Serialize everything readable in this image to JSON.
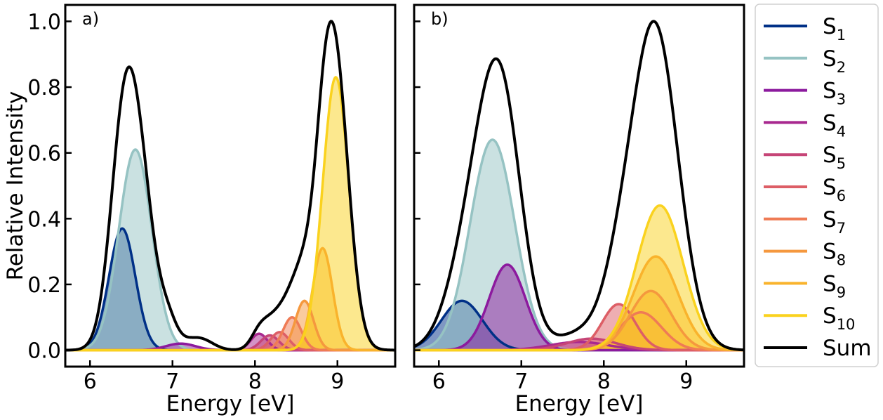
{
  "chart_data": [
    {
      "type": "line",
      "panel_label": "a)",
      "xlabel": "Energy [eV]",
      "ylabel": "Relative Intensity",
      "xlim": [
        5.7,
        9.7
      ],
      "ylim": [
        -0.05,
        1.05
      ],
      "xticks": [
        "6",
        "7",
        "8",
        "9"
      ],
      "yticks": [
        "0.0",
        "0.2",
        "0.4",
        "0.6",
        "0.8",
        "1.0"
      ],
      "series": [
        {
          "name": "S1",
          "peaks": [
            [
              6.39,
              0.37,
              0.16
            ]
          ],
          "color": "#003087"
        },
        {
          "name": "S2",
          "peaks": [
            [
              6.55,
              0.61,
              0.2
            ]
          ],
          "color": "#96c3c3"
        },
        {
          "name": "S3",
          "peaks": [
            [
              7.1,
              0.02,
              0.18
            ]
          ],
          "color": "#8c1a9e"
        },
        {
          "name": "S4",
          "peaks": [
            [
              8.05,
              0.05,
              0.1
            ]
          ],
          "color": "#a8288f"
        },
        {
          "name": "S5",
          "peaks": [
            [
              8.18,
              0.045,
              0.11
            ]
          ],
          "color": "#c64577"
        },
        {
          "name": "S6",
          "peaks": [
            [
              8.3,
              0.055,
              0.11
            ]
          ],
          "color": "#dd5e66"
        },
        {
          "name": "S7",
          "peaks": [
            [
              8.45,
              0.1,
              0.11
            ]
          ],
          "color": "#ef7b55"
        },
        {
          "name": "S8",
          "peaks": [
            [
              8.6,
              0.15,
              0.11
            ]
          ],
          "color": "#f5983e"
        },
        {
          "name": "S9",
          "peaks": [
            [
              8.82,
              0.31,
              0.12
            ]
          ],
          "color": "#f9b32c"
        },
        {
          "name": "S10",
          "peaks": [
            [
              8.98,
              0.83,
              0.16
            ]
          ],
          "color": "#fad21e"
        },
        {
          "name": "Sum",
          "peaks": [],
          "color": "#000000"
        }
      ],
      "sum_peak": 1.0,
      "sum_extra": [
        [
          6.95,
          0.05,
          0.1
        ],
        [
          7.35,
          0.03,
          0.15
        ],
        [
          8.7,
          0.05,
          0.3
        ]
      ]
    },
    {
      "type": "line",
      "panel_label": "b)",
      "xlabel": "Energy [eV]",
      "ylabel": "",
      "xlim": [
        5.7,
        9.7
      ],
      "ylim": [
        -0.05,
        1.05
      ],
      "xticks": [
        "6",
        "7",
        "8",
        "9"
      ],
      "yticks": [
        "",
        "",
        "",
        "",
        "",
        ""
      ],
      "series": [
        {
          "name": "S1",
          "peaks": [
            [
              6.28,
              0.15,
              0.25
            ]
          ],
          "color": "#003087"
        },
        {
          "name": "S2",
          "peaks": [
            [
              6.65,
              0.64,
              0.27
            ]
          ],
          "color": "#96c3c3"
        },
        {
          "name": "S3",
          "peaks": [
            [
              6.83,
              0.26,
              0.22
            ]
          ],
          "color": "#8c1a9e"
        },
        {
          "name": "S4",
          "peaks": [
            [
              7.7,
              0.025,
              0.35
            ]
          ],
          "color": "#a8288f"
        },
        {
          "name": "S5",
          "peaks": [
            [
              7.85,
              0.035,
              0.3
            ]
          ],
          "color": "#c64577"
        },
        {
          "name": "S6",
          "peaks": [
            [
              8.18,
              0.14,
              0.2
            ]
          ],
          "color": "#dd5e66"
        },
        {
          "name": "S7",
          "peaks": [
            [
              8.45,
              0.115,
              0.25
            ]
          ],
          "color": "#ef7b55"
        },
        {
          "name": "S8",
          "peaks": [
            [
              8.57,
              0.18,
              0.25
            ]
          ],
          "color": "#f5983e"
        },
        {
          "name": "S9",
          "peaks": [
            [
              8.63,
              0.285,
              0.27
            ]
          ],
          "color": "#f9b32c"
        },
        {
          "name": "S10",
          "peaks": [
            [
              8.68,
              0.44,
              0.28
            ]
          ],
          "color": "#fad21e"
        },
        {
          "name": "Sum",
          "peaks": [],
          "color": "#000000"
        }
      ],
      "sum_peak": 1.0,
      "sum_extra": []
    }
  ],
  "legend": {
    "items": [
      {
        "base": "S",
        "sub": "1",
        "color": "#003087"
      },
      {
        "base": "S",
        "sub": "2",
        "color": "#96c3c3"
      },
      {
        "base": "S",
        "sub": "3",
        "color": "#8c1a9e"
      },
      {
        "base": "S",
        "sub": "4",
        "color": "#a8288f"
      },
      {
        "base": "S",
        "sub": "5",
        "color": "#c64577"
      },
      {
        "base": "S",
        "sub": "6",
        "color": "#dd5e66"
      },
      {
        "base": "S",
        "sub": "7",
        "color": "#ef7b55"
      },
      {
        "base": "S",
        "sub": "8",
        "color": "#f5983e"
      },
      {
        "base": "S",
        "sub": "9",
        "color": "#f9b32c"
      },
      {
        "base": "S",
        "sub": "10",
        "color": "#fad21e"
      },
      {
        "base": "Sum",
        "sub": "",
        "color": "#000000"
      }
    ]
  }
}
